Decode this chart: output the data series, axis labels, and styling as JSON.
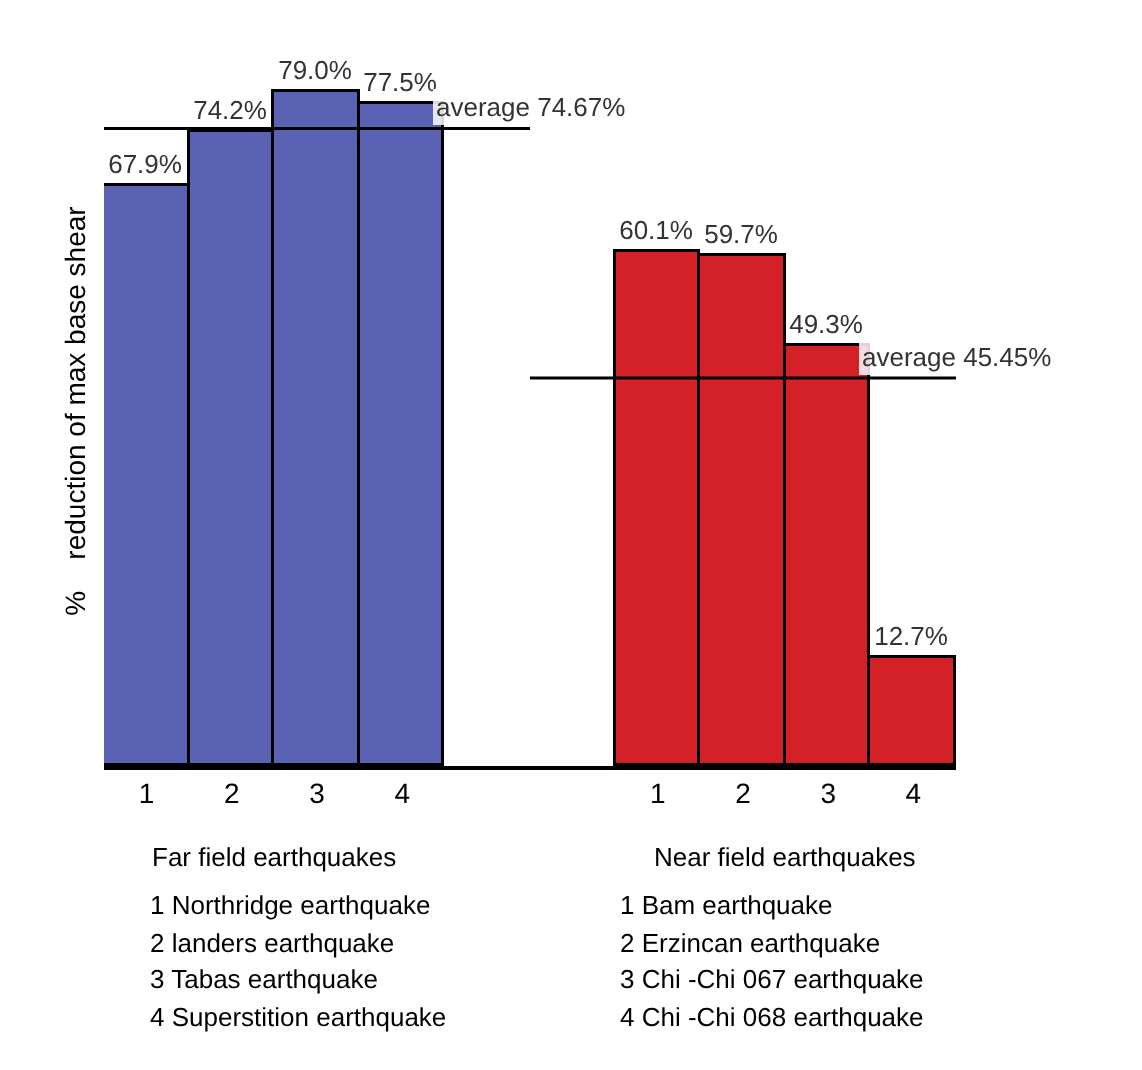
{
  "chart_data": {
    "type": "bar",
    "ylabel": "%    reduction of max base shear",
    "categories": [
      "1",
      "2",
      "3",
      "4",
      null,
      null,
      "1",
      "2",
      "3",
      "4"
    ],
    "values": [
      67.9,
      74.2,
      79.0,
      77.5,
      null,
      null,
      60.1,
      59.7,
      49.3,
      12.7
    ],
    "value_labels": [
      "67.9%",
      "74.2%",
      "79.0%",
      "77.5%",
      null,
      null,
      "60.1%",
      "59.7%",
      "49.3%",
      "12.7%"
    ],
    "colors": [
      "#5a62b3",
      "#5a62b3",
      "#5a62b3",
      "#5a62b3",
      null,
      null,
      "#d42027",
      "#d42027",
      "#d42027",
      "#d42027"
    ],
    "ref_lines": [
      {
        "axis": "y",
        "value": 74.67,
        "label": "average 74.67%",
        "color": "#000000"
      },
      {
        "axis": "y",
        "value": 45.45,
        "label": "average 45.45%",
        "color": "#000000"
      }
    ],
    "annotations": [
      "Far field earthquakes",
      "Near field earthquakes",
      "1 Northridge earthquake",
      "2 landers earthquake",
      "3 Tabas earthquake",
      "4 Superstition earthquake",
      "1 Bam earthquake",
      "2 Erzincan earthquake",
      "3 Chi -Chi 067 earthquake",
      "4 Chi -Chi 068 earthquake"
    ],
    "grid": false
  }
}
